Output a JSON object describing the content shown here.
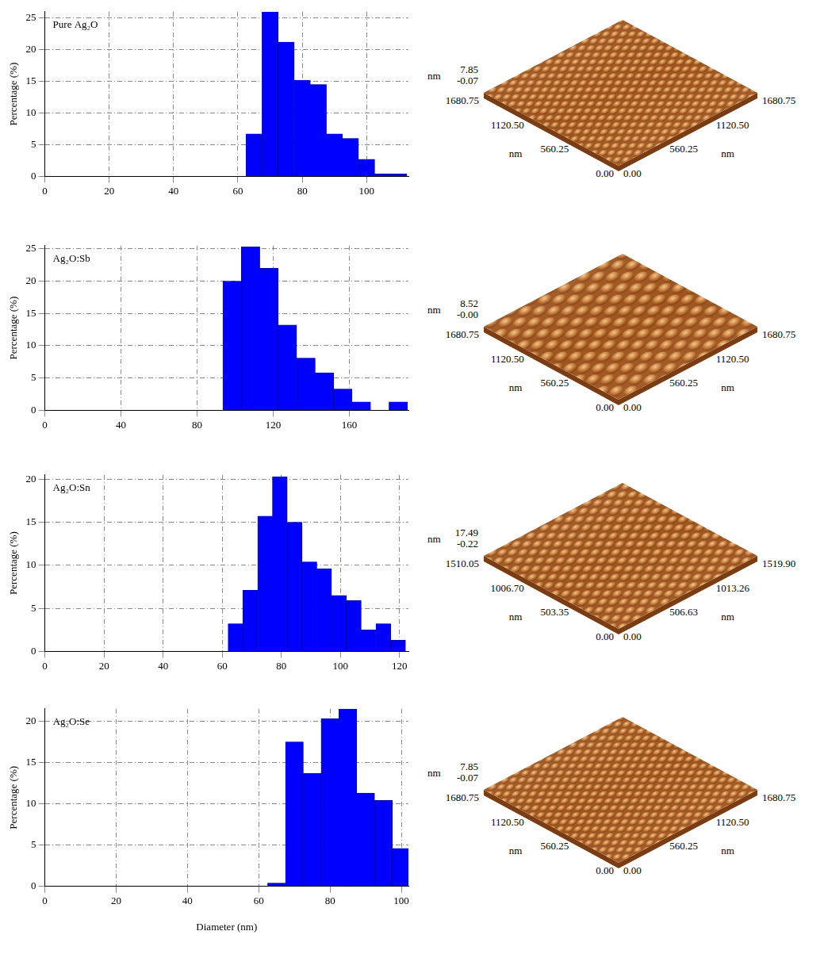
{
  "chart_data": [
    {
      "type": "histogram",
      "annotation": "Pure Ag₂O",
      "ylabel": "Percentage (%)",
      "bins": [
        62.5,
        67.5,
        72.5,
        77.5,
        82.5,
        87.5,
        92.5,
        97.5,
        102.5,
        107.5,
        112.5
      ],
      "counts": [
        6.7,
        26,
        21.2,
        15.2,
        14.5,
        6.7,
        6,
        2.7,
        0.4,
        0.4
      ],
      "color": "#0000ff",
      "xlim": [
        0,
        113
      ],
      "xticks": [
        0,
        20,
        40,
        60,
        80,
        100
      ],
      "ylim": [
        0,
        26
      ],
      "yticks": [
        0,
        5,
        10,
        15,
        20,
        25
      ],
      "grid": true
    },
    {
      "type": "histogram",
      "annotation": "Ag₂O:Sb",
      "ylabel": "Percentage (%)",
      "bins": [
        93.5,
        103.2,
        112.9,
        122.6,
        132.3,
        142,
        151.7,
        161.4,
        171.1,
        180.8,
        190.5
      ],
      "counts": [
        20,
        25.3,
        22,
        13.2,
        8.1,
        5.8,
        3.3,
        1.3,
        0,
        1.3
      ],
      "color": "#0000ff",
      "xlim": [
        0,
        191
      ],
      "xticks": [
        0,
        40,
        80,
        120,
        160
      ],
      "ylim": [
        0,
        25.5
      ],
      "yticks": [
        0,
        5,
        10,
        15,
        20,
        25
      ],
      "grid": true
    },
    {
      "type": "histogram",
      "annotation": "Ag₂O:Sn",
      "ylabel": "Percentage (%)",
      "bins": [
        62,
        67,
        72,
        77,
        82,
        87,
        92,
        97,
        102,
        107,
        112,
        117,
        122
      ],
      "counts": [
        3.2,
        7.1,
        15.7,
        20.3,
        15,
        10.4,
        9.6,
        6.5,
        5.9,
        2.5,
        3.2,
        1.3
      ],
      "color": "#0000ff",
      "xlim": [
        0,
        123
      ],
      "xticks": [
        0,
        20,
        40,
        60,
        80,
        100,
        120
      ],
      "ylim": [
        0,
        20.5
      ],
      "yticks": [
        0,
        5,
        10,
        15,
        20
      ],
      "grid": true
    },
    {
      "type": "histogram",
      "annotation": "Ag₂O:Se",
      "ylabel": "Percentage (%)",
      "xlabel": "Diameter (nm)",
      "bins": [
        62.5,
        67.5,
        72.5,
        77.5,
        82.5,
        87.5,
        92.5,
        97.5,
        102.5
      ],
      "counts": [
        0.4,
        17.5,
        13.7,
        20.3,
        21.5,
        11.3,
        10.4,
        4.6
      ],
      "color": "#0000ff",
      "xlim": [
        0,
        102
      ],
      "xticks": [
        0,
        20,
        40,
        60,
        80,
        100
      ],
      "ylim": [
        0,
        21.5
      ],
      "yticks": [
        0,
        5,
        10,
        15,
        20
      ],
      "grid": true
    }
  ],
  "afm_images": [
    {
      "zlabel": "nm",
      "zticks": [
        -0.07,
        7.85
      ],
      "ylabel": "nm",
      "yticks": [
        {
          "value": 0,
          "label": "0.00"
        },
        560.25,
        {
          "value": 1120.5,
          "label": "1120.50"
        },
        1680.75
      ],
      "xlabel": "nm",
      "xticks": [
        {
          "value": 0,
          "label": "0.00"
        },
        560.25,
        {
          "value": 1120.5,
          "label": "1120.50"
        },
        1680.75
      ]
    },
    {
      "zlabel": "nm",
      "zticks": [
        {
          "value": 0,
          "label": "-0.00"
        },
        8.52
      ],
      "ylabel": "nm",
      "yticks": [
        {
          "value": 0,
          "label": "0.00"
        },
        560.25,
        {
          "value": 1120.5,
          "label": "1120.50"
        },
        1680.75
      ],
      "xlabel": "nm",
      "xticks": [
        {
          "value": 0,
          "label": "0.00"
        },
        560.25,
        {
          "value": 1120.5,
          "label": "1120.50"
        },
        1680.75
      ]
    },
    {
      "zlabel": "nm",
      "zticks": [
        -0.22,
        17.49
      ],
      "ylabel": "nm",
      "yticks": [
        {
          "value": 0,
          "label": "0.00"
        },
        503.35,
        {
          "value": 1006.7,
          "label": "1006.70"
        },
        1510.05
      ],
      "xlabel": "nm",
      "xticks": [
        {
          "value": 0,
          "label": "0.00"
        },
        506.63,
        1013.26,
        {
          "value": 1519.9,
          "label": "1519.90"
        }
      ]
    },
    {
      "zlabel": "nm",
      "zticks": [
        -0.07,
        7.85
      ],
      "ylabel": "nm",
      "yticks": [
        {
          "value": 0,
          "label": "0.00"
        },
        560.25,
        {
          "value": 1120.5,
          "label": "1120.50"
        },
        1680.75
      ],
      "xlabel": "nm",
      "xticks": [
        {
          "value": 0,
          "label": "0.00"
        },
        560.25,
        {
          "value": 1120.5,
          "label": "1120.50"
        },
        1680.75
      ]
    }
  ]
}
